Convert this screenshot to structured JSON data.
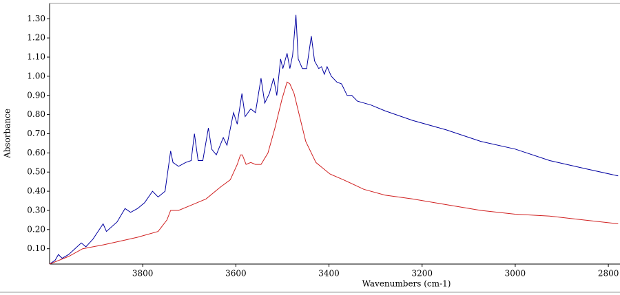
{
  "chart_data": {
    "type": "line",
    "x_label": "Wavenumbers (cm-1)",
    "y_label": "Absorbance",
    "xlim": [
      4000,
      2775
    ],
    "ylim": [
      0.02,
      1.38
    ],
    "xticks": [
      3800,
      3600,
      3400,
      3200,
      3000,
      2800
    ],
    "yticks": [
      {
        "value": 0.1,
        "label": "0.10"
      },
      {
        "value": 0.2,
        "label": "0.20"
      },
      {
        "value": 0.3,
        "label": "0.30"
      },
      {
        "value": 0.4,
        "label": "0.40"
      },
      {
        "value": 0.5,
        "label": "0.50"
      },
      {
        "value": 0.6,
        "label": "0.60"
      },
      {
        "value": 0.7,
        "label": "0.70"
      },
      {
        "value": 0.8,
        "label": "0.80"
      },
      {
        "value": 0.9,
        "label": "0.90"
      },
      {
        "value": 1.0,
        "label": "1.00"
      },
      {
        "value": 1.1,
        "label": "1.10"
      },
      {
        "value": 1.2,
        "label": "1.20"
      },
      {
        "value": 1.3,
        "label": "1.30"
      }
    ],
    "series": [
      {
        "color": "#0000a0",
        "x": [
          4000,
          3988,
          3981,
          3973,
          3959,
          3932,
          3922,
          3907,
          3885,
          3878,
          3855,
          3838,
          3826,
          3811,
          3796,
          3779,
          3767,
          3752,
          3740,
          3735,
          3723,
          3708,
          3696,
          3689,
          3681,
          3671,
          3659,
          3652,
          3642,
          3627,
          3619,
          3605,
          3597,
          3587,
          3580,
          3568,
          3558,
          3546,
          3538,
          3528,
          3519,
          3512,
          3504,
          3499,
          3490,
          3484,
          3478,
          3471,
          3466,
          3457,
          3448,
          3438,
          3431,
          3422,
          3416,
          3410,
          3404,
          3395,
          3383,
          3373,
          3361,
          3351,
          3339,
          3310,
          3280,
          3221,
          3148,
          3074,
          3000,
          2926,
          2853,
          2779
        ],
        "values": [
          0.02,
          0.04,
          0.07,
          0.05,
          0.07,
          0.13,
          0.11,
          0.15,
          0.23,
          0.19,
          0.24,
          0.31,
          0.29,
          0.31,
          0.34,
          0.4,
          0.37,
          0.4,
          0.61,
          0.55,
          0.53,
          0.55,
          0.56,
          0.7,
          0.56,
          0.56,
          0.73,
          0.62,
          0.59,
          0.68,
          0.64,
          0.81,
          0.75,
          0.91,
          0.79,
          0.83,
          0.81,
          0.99,
          0.86,
          0.91,
          0.99,
          0.9,
          1.09,
          1.04,
          1.12,
          1.04,
          1.11,
          1.32,
          1.09,
          1.04,
          1.04,
          1.21,
          1.08,
          1.04,
          1.05,
          1.01,
          1.05,
          1.0,
          0.97,
          0.96,
          0.9,
          0.9,
          0.87,
          0.85,
          0.82,
          0.77,
          0.72,
          0.66,
          0.62,
          0.56,
          0.52,
          0.48
        ]
      },
      {
        "color": "#d02020",
        "x": [
          4000,
          3959,
          3929,
          3885,
          3848,
          3811,
          3767,
          3748,
          3740,
          3723,
          3693,
          3664,
          3634,
          3612,
          3597,
          3590,
          3586,
          3578,
          3568,
          3558,
          3546,
          3531,
          3516,
          3501,
          3490,
          3484,
          3475,
          3465,
          3450,
          3428,
          3398,
          3369,
          3325,
          3280,
          3221,
          3148,
          3074,
          3000,
          2926,
          2853,
          2779
        ],
        "values": [
          0.02,
          0.06,
          0.1,
          0.12,
          0.14,
          0.16,
          0.19,
          0.25,
          0.3,
          0.3,
          0.33,
          0.36,
          0.42,
          0.46,
          0.54,
          0.59,
          0.59,
          0.54,
          0.55,
          0.54,
          0.54,
          0.6,
          0.73,
          0.88,
          0.97,
          0.96,
          0.91,
          0.81,
          0.66,
          0.55,
          0.49,
          0.46,
          0.41,
          0.38,
          0.36,
          0.33,
          0.3,
          0.28,
          0.27,
          0.25,
          0.23
        ]
      }
    ]
  }
}
